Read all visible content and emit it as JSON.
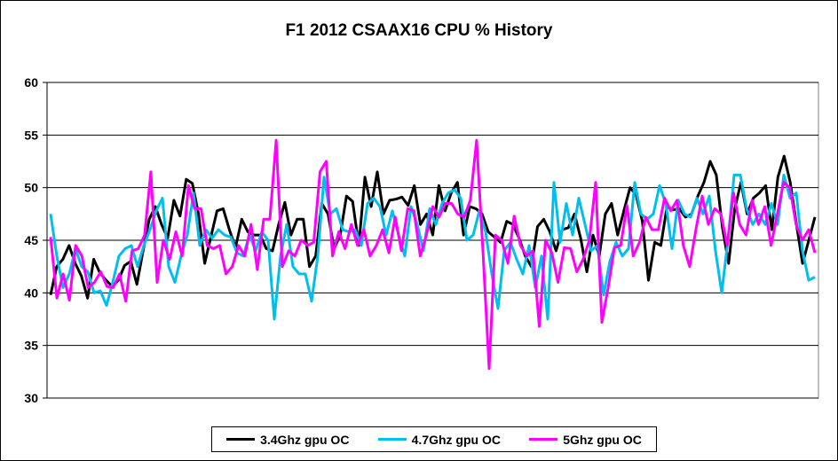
{
  "chart_data": {
    "type": "line",
    "title": "F1 2012 CSAAX16 CPU % History",
    "xlabel": "",
    "ylabel": "",
    "ylim": [
      30,
      60
    ],
    "yticks": [
      "30",
      "35",
      "40",
      "45",
      "50",
      "55",
      "60"
    ],
    "grid": "horizontal",
    "legend_position": "bottom",
    "series": [
      {
        "name": "3.4Ghz gpu OC",
        "color": "#000000",
        "values": [
          39.8,
          42.5,
          43.2,
          44.5,
          42.8,
          41.6,
          39.5,
          43.2,
          41.9,
          41.2,
          40.6,
          41.2,
          42.6,
          43.0,
          40.8,
          44.0,
          47.0,
          48.2,
          46.5,
          45.2,
          48.8,
          47.3,
          50.8,
          50.4,
          47.5,
          42.8,
          45.3,
          47.8,
          48.0,
          46.0,
          44.3,
          47.0,
          45.8,
          45.5,
          45.5,
          44.2,
          44.0,
          46.5,
          48.6,
          45.5,
          47.0,
          47.0,
          42.5,
          43.5,
          48.5,
          47.5,
          44.2,
          45.5,
          49.2,
          48.7,
          44.5,
          51.0,
          48.2,
          51.5,
          47.5,
          48.8,
          48.9,
          49.1,
          48.3,
          50.2,
          46.5,
          47.5,
          45.5,
          50.2,
          47.8,
          49.5,
          50.5,
          45.5,
          48.2,
          48.0,
          47.5,
          45.8,
          45.3,
          44.8,
          46.8,
          46.5,
          45.2,
          43.5,
          42.5,
          46.3,
          47.0,
          45.8,
          44.0,
          46.0,
          46.2,
          47.5,
          45.2,
          42.0,
          45.5,
          43.5,
          47.5,
          48.5,
          45.5,
          47.8,
          50.0,
          49.3,
          46.8,
          41.2,
          44.8,
          44.5,
          48.2,
          47.9,
          48.0,
          47.2,
          47.5,
          49.2,
          50.5,
          52.5,
          51.2,
          46.2,
          42.8,
          48.0,
          50.5,
          47.5,
          49.0,
          49.5,
          50.2,
          46.0,
          51.0,
          53.0,
          50.5,
          46.5,
          42.8,
          45.0,
          47.2
        ]
      },
      {
        "name": "4.7Ghz gpu OC",
        "color": "#00BFEF",
        "values": [
          47.5,
          43.5,
          40.5,
          41.8,
          44.2,
          42.5,
          42.0,
          40.0,
          40.2,
          38.8,
          41.0,
          43.5,
          44.2,
          44.5,
          42.5,
          44.5,
          46.0,
          47.8,
          49.0,
          42.5,
          41.0,
          43.5,
          45.5,
          49.5,
          44.5,
          46.0,
          45.2,
          46.0,
          45.5,
          45.3,
          43.8,
          43.5,
          45.5,
          44.0,
          45.8,
          45.0,
          37.5,
          43.5,
          46.5,
          42.5,
          41.8,
          41.8,
          39.2,
          43.5,
          51.0,
          47.5,
          48.0,
          46.0,
          45.8,
          46.0,
          44.5,
          48.5,
          49.0,
          48.2,
          45.5,
          47.8,
          45.5,
          43.5,
          48.2,
          46.5,
          44.0,
          48.0,
          46.5,
          48.5,
          49.5,
          49.8,
          49.0,
          45.0,
          45.5,
          47.8,
          45.8,
          41.8,
          38.5,
          44.0,
          44.8,
          43.2,
          41.8,
          44.5,
          40.5,
          43.5,
          37.5,
          50.5,
          44.8,
          48.5,
          45.5,
          49.0,
          46.5,
          44.0,
          44.5,
          39.8,
          43.0,
          44.8,
          43.5,
          44.2,
          50.5,
          47.5,
          47.0,
          47.5,
          50.2,
          48.5,
          44.2,
          48.8,
          47.5,
          47.2,
          49.0,
          47.5,
          49.2,
          44.0,
          40.0,
          45.0,
          51.2,
          51.2,
          48.0,
          46.5,
          47.5,
          46.5,
          48.5,
          46.5,
          51.2,
          49.0,
          49.5,
          44.0,
          41.2,
          41.5
        ]
      },
      {
        "name": "5Ghz gpu OC",
        "color": "#FF00FF",
        "values": [
          45.3,
          39.5,
          41.8,
          39.3,
          44.5,
          43.5,
          40.5,
          41.0,
          42.0,
          40.6,
          40.5,
          41.8,
          39.2,
          44.0,
          44.2,
          45.5,
          51.5,
          41.0,
          45.0,
          43.2,
          45.8,
          43.5,
          50.2,
          48.0,
          48.0,
          44.5,
          44.2,
          44.5,
          41.8,
          42.5,
          44.5,
          43.5,
          46.5,
          42.2,
          47.0,
          47.0,
          54.5,
          42.5,
          44.0,
          43.5,
          45.0,
          44.5,
          44.8,
          51.5,
          52.5,
          43.5,
          45.8,
          44.2,
          46.5,
          44.5,
          46.0,
          43.5,
          44.5,
          46.0,
          43.8,
          47.2,
          44.0,
          48.0,
          47.8,
          43.5,
          45.5,
          48.2,
          47.2,
          48.5,
          48.5,
          47.5,
          47.2,
          48.8,
          54.5,
          44.0,
          32.8,
          45.5,
          45.0,
          42.8,
          47.3,
          44.5,
          43.5,
          44.0,
          36.8,
          45.0,
          43.8,
          41.0,
          44.3,
          44.2,
          42.0,
          43.2,
          45.0,
          50.5,
          37.2,
          40.5,
          44.3,
          44.5,
          48.3,
          43.5,
          44.8,
          47.2,
          46.0,
          46.0,
          49.0,
          47.8,
          48.8,
          44.5,
          42.5,
          46.0,
          49.2,
          46.5,
          48.0,
          47.5,
          44.5,
          49.5,
          46.5,
          45.5,
          48.8,
          46.5,
          48.2,
          44.5,
          47.5,
          50.5,
          50.0,
          46.5,
          45.0,
          46.0,
          43.8
        ]
      }
    ]
  }
}
